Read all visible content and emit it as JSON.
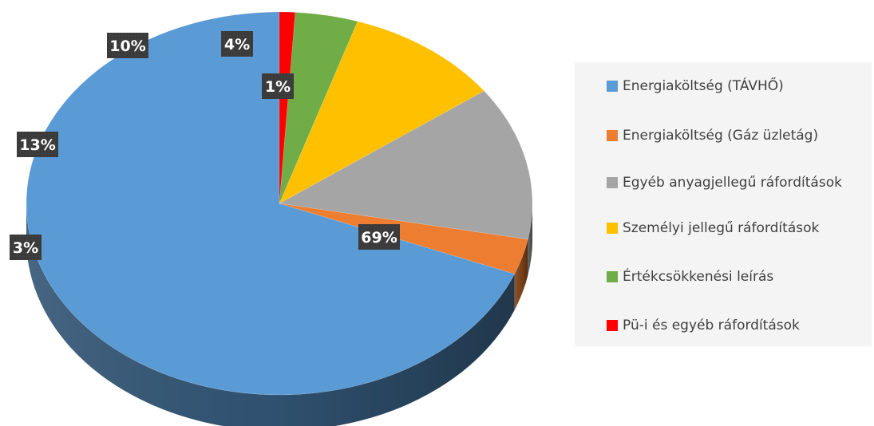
{
  "chart_data": {
    "type": "pie",
    "categories": [
      "Energiaköltség (TÁVHŐ)",
      "Energiaköltség (Gáz üzletág)",
      "Egyéb anyagjellegű ráfordítások",
      "Személyi jellegű ráfordítások",
      "Értékcsökkenési leírás",
      "Pü-i és egyéb ráfordítások"
    ],
    "values": [
      69,
      3,
      13,
      10,
      4,
      1
    ],
    "data_labels": [
      "69%",
      "3%",
      "13%",
      "10%",
      "4%",
      "1%"
    ],
    "colors": [
      "#5b9bd5",
      "#ed7d31",
      "#a5a5a5",
      "#ffc000",
      "#70ad47",
      "#ff0000"
    ],
    "style": "3d-pie",
    "legend_position": "right",
    "title": ""
  }
}
